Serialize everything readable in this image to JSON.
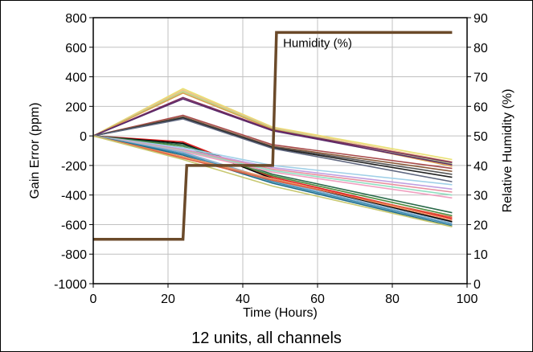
{
  "caption": "12 units, all channels",
  "chart_data": {
    "type": "line",
    "annotation": "Humidity (%)",
    "xlabel": "Time (Hours)",
    "ylabel": "Gain Error (ppm)",
    "y2label": "Relative Humidity (%)",
    "xlim": [
      0,
      100
    ],
    "ylim": [
      -1000,
      800
    ],
    "y2lim": [
      0,
      90
    ],
    "xticks": [
      "0",
      "20",
      "40",
      "60",
      "80",
      "100"
    ],
    "yticks": [
      "-1000",
      "-800",
      "-600",
      "-400",
      "-200",
      "0",
      "200",
      "400",
      "600",
      "800"
    ],
    "y2ticks": [
      "0",
      "10",
      "20",
      "30",
      "40",
      "50",
      "60",
      "70",
      "80",
      "90"
    ],
    "grid": true,
    "humidity": {
      "axis": "right",
      "color": "#6b4a2a",
      "x": [
        0,
        24,
        25,
        48,
        49,
        96
      ],
      "y": [
        15,
        15,
        40,
        40,
        85,
        85
      ]
    },
    "series": [
      {
        "color": "#e8e070",
        "x": [
          0,
          24,
          48,
          96
        ],
        "y": [
          0,
          320,
          60,
          -160
        ]
      },
      {
        "color": "#f0c08c",
        "x": [
          0,
          24,
          48,
          96
        ],
        "y": [
          0,
          310,
          55,
          -175
        ]
      },
      {
        "color": "#b8d888",
        "x": [
          0,
          24,
          48,
          96
        ],
        "y": [
          0,
          300,
          50,
          -190
        ]
      },
      {
        "color": "#d9a050",
        "x": [
          0,
          24,
          48,
          96
        ],
        "y": [
          0,
          290,
          45,
          -205
        ]
      },
      {
        "color": "#7a2a5a",
        "x": [
          0,
          24,
          48,
          96
        ],
        "y": [
          0,
          260,
          40,
          -180
        ]
      },
      {
        "color": "#5a2a6a",
        "x": [
          0,
          24,
          48,
          96
        ],
        "y": [
          0,
          250,
          35,
          -195
        ]
      },
      {
        "color": "#a84a4a",
        "x": [
          0,
          24,
          48,
          96
        ],
        "y": [
          0,
          140,
          -60,
          -220
        ]
      },
      {
        "color": "#8a5a3a",
        "x": [
          0,
          24,
          48,
          96
        ],
        "y": [
          0,
          130,
          -70,
          -240
        ]
      },
      {
        "color": "#555555",
        "x": [
          0,
          24,
          48,
          96
        ],
        "y": [
          0,
          125,
          -75,
          -260
        ]
      },
      {
        "color": "#222222",
        "x": [
          0,
          24,
          48,
          96
        ],
        "y": [
          0,
          120,
          -80,
          -280
        ]
      },
      {
        "color": "#606880",
        "x": [
          0,
          24,
          48,
          96
        ],
        "y": [
          0,
          115,
          -85,
          -310
        ]
      },
      {
        "color": "#e02020",
        "x": [
          0,
          24,
          48,
          96
        ],
        "y": [
          0,
          -40,
          -280,
          -560
        ]
      },
      {
        "color": "#000000",
        "x": [
          0,
          24,
          48,
          96
        ],
        "y": [
          0,
          -50,
          -290,
          -580
        ]
      },
      {
        "color": "#2a6a4a",
        "x": [
          0,
          24,
          48,
          96
        ],
        "y": [
          0,
          -60,
          -260,
          -520
        ]
      },
      {
        "color": "#4a8a3a",
        "x": [
          0,
          24,
          48,
          96
        ],
        "y": [
          0,
          -70,
          -270,
          -540
        ]
      },
      {
        "color": "#a0d0e8",
        "x": [
          0,
          24,
          48,
          96
        ],
        "y": [
          0,
          -80,
          -200,
          -330
        ]
      },
      {
        "color": "#c0a0e0",
        "x": [
          0,
          24,
          48,
          96
        ],
        "y": [
          0,
          -90,
          -215,
          -360
        ]
      },
      {
        "color": "#e890a0",
        "x": [
          0,
          24,
          48,
          96
        ],
        "y": [
          0,
          -95,
          -225,
          -380
        ]
      },
      {
        "color": "#90e0c0",
        "x": [
          0,
          24,
          48,
          96
        ],
        "y": [
          0,
          -100,
          -235,
          -400
        ]
      },
      {
        "color": "#f0a0c0",
        "x": [
          0,
          24,
          48,
          96
        ],
        "y": [
          0,
          -105,
          -245,
          -420
        ]
      },
      {
        "color": "#8ab0d0",
        "x": [
          0,
          24,
          48,
          96
        ],
        "y": [
          0,
          -110,
          -300,
          -590
        ]
      },
      {
        "color": "#3a8ab0",
        "x": [
          0,
          24,
          48,
          96
        ],
        "y": [
          0,
          -120,
          -310,
          -600
        ]
      },
      {
        "color": "#1a6a8a",
        "x": [
          0,
          24,
          48,
          96
        ],
        "y": [
          0,
          -130,
          -320,
          -610
        ]
      },
      {
        "color": "#f09060",
        "x": [
          0,
          24,
          48,
          96
        ],
        "y": [
          0,
          -140,
          -290,
          -570
        ]
      },
      {
        "color": "#e06040",
        "x": [
          0,
          24,
          48,
          96
        ],
        "y": [
          0,
          -150,
          -300,
          -550
        ]
      },
      {
        "color": "#c8c870",
        "x": [
          0,
          24,
          48,
          96
        ],
        "y": [
          0,
          -160,
          -340,
          -615
        ]
      }
    ]
  }
}
